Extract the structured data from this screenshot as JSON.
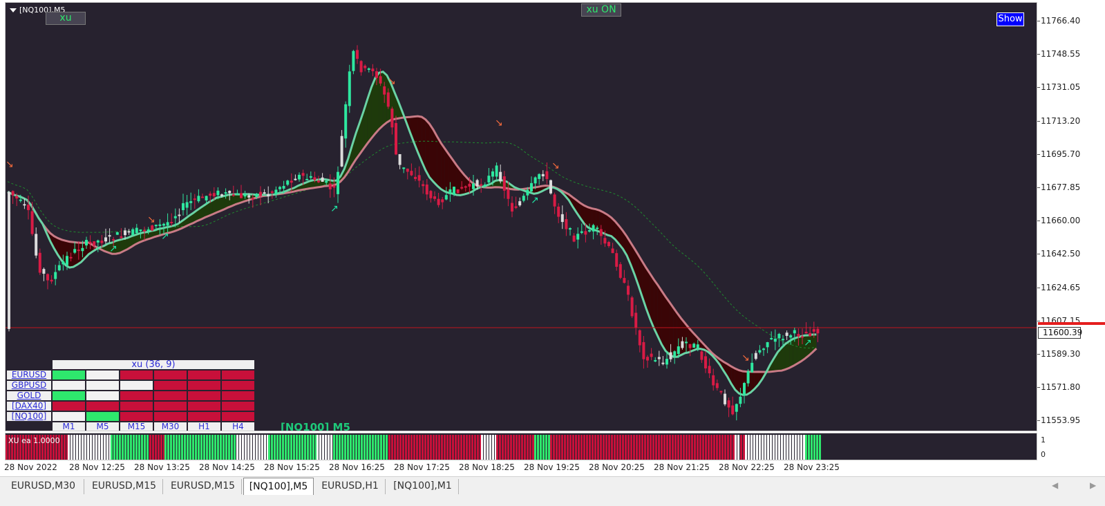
{
  "chart": {
    "title": "[NQ100],M5",
    "xu_button": "xu",
    "xu_on_label": "xu ON",
    "show_button": "Show",
    "symbol_label": "[NQ100] M5"
  },
  "mtf_table": {
    "title": "xu (36, 9)",
    "timeframes": [
      "M1",
      "M5",
      "M15",
      "M30",
      "H1",
      "H4"
    ],
    "rows": [
      {
        "symbol": "EURUSD",
        "cells": [
          "green",
          "white",
          "red",
          "red",
          "red",
          "red"
        ]
      },
      {
        "symbol": "GBPUSD",
        "cells": [
          "white",
          "white",
          "white",
          "red",
          "red",
          "red"
        ]
      },
      {
        "symbol": "GOLD",
        "cells": [
          "green",
          "white",
          "red",
          "red",
          "red",
          "red"
        ]
      },
      {
        "symbol": "[DAX40]",
        "cells": [
          "red",
          "red",
          "red",
          "red",
          "red",
          "red"
        ]
      },
      {
        "symbol": "[NQ100]",
        "cells": [
          "white",
          "green",
          "red",
          "red",
          "red",
          "red"
        ]
      }
    ],
    "colors": {
      "green": "#2ee86d",
      "white": "#f2f2f2",
      "red": "#c8103a"
    }
  },
  "price_axis": {
    "ticks": [
      "11766.40",
      "11748.55",
      "11731.05",
      "11713.20",
      "11695.70",
      "11677.85",
      "11660.00",
      "11642.50",
      "11624.65",
      "11607.15",
      "11589.30",
      "11571.80",
      "11553.95"
    ],
    "current_price": "11600.39"
  },
  "sub_window": {
    "label": "XU ea 1.0000",
    "ticks": [
      "1",
      "0"
    ]
  },
  "time_axis": {
    "ticks": [
      "28 Nov 2022",
      "28 Nov 12:25",
      "28 Nov 13:25",
      "28 Nov 14:25",
      "28 Nov 15:25",
      "28 Nov 16:25",
      "28 Nov 17:25",
      "28 Nov 18:25",
      "28 Nov 19:25",
      "28 Nov 20:25",
      "28 Nov 21:25",
      "28 Nov 22:25",
      "28 Nov 23:25"
    ]
  },
  "tabs": [
    {
      "label": "EURUSD,M30",
      "active": false
    },
    {
      "label": "EURUSD,M15",
      "active": false
    },
    {
      "label": "EURUSD,M15",
      "active": false
    },
    {
      "label": "[NQ100],M5",
      "active": true
    },
    {
      "label": "EURUSD,H1",
      "active": false
    },
    {
      "label": "[NQ100],M1",
      "active": false
    }
  ],
  "colors": {
    "background": "#27222f",
    "bull": "#2ee8a0",
    "bear": "#d81b45",
    "neutral": "#dcdcdc",
    "fast_ma": "#6ad3a5",
    "slow_ma": "#c97b86",
    "bear_fill": "#3a0506",
    "bull_fill": "#1e3a0b",
    "arrow_up": "#1ee8a6",
    "arrow_down": "#f26a3c"
  }
}
